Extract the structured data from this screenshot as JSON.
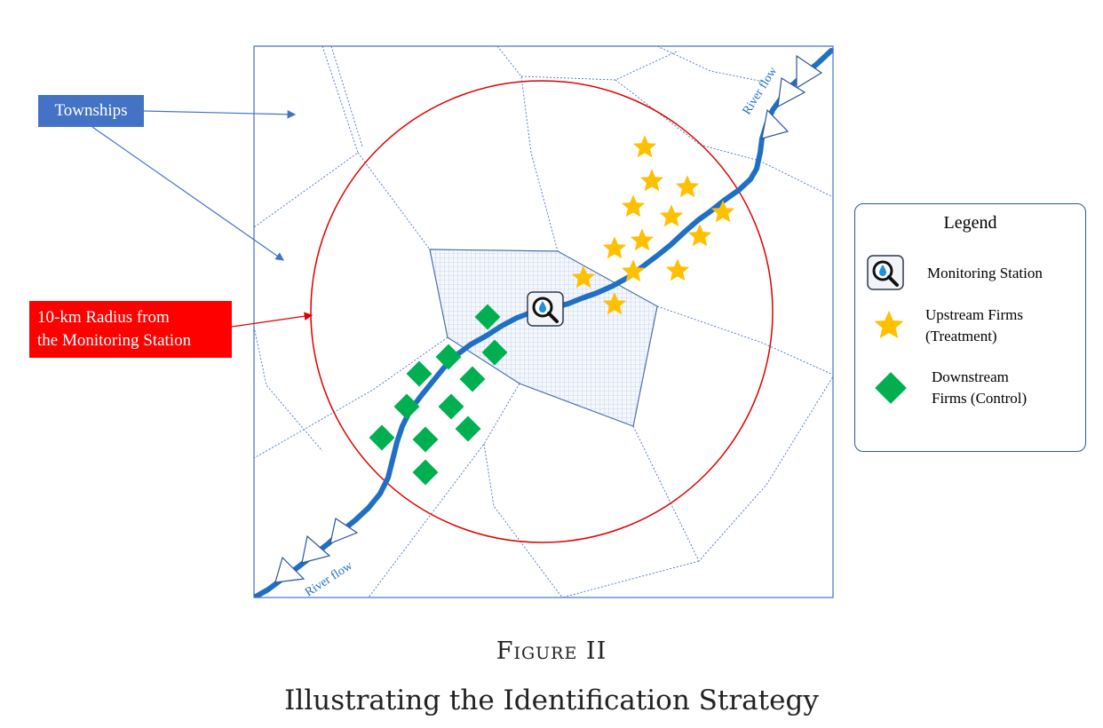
{
  "labels": {
    "townships": "Townships",
    "radius_line1": "10-km Radius from",
    "radius_line2": "the Monitoring Station",
    "river_flow_top": "River flow",
    "river_flow_bottom": "River flow"
  },
  "legend": {
    "title": "Legend",
    "monitoring_station": "Monitoring Station",
    "upstream_line1": "Upstream Firms",
    "upstream_line2": "(Treatment)",
    "downstream_line1": "Downstream",
    "downstream_line2": "Firms (Control)"
  },
  "caption": {
    "figure_label": "Figure II",
    "title": "Illustrating the Identification Strategy"
  },
  "icons": {
    "station": "magnifier-water-drop-icon",
    "upstream": "star-icon",
    "downstream": "diamond-icon",
    "flow": "triangle-arrow-icon"
  },
  "colors": {
    "river": "#1f6fc4",
    "circle": "#e00000",
    "boundary": "#4472c4",
    "star": "#ffc000",
    "diamond": "#00b050",
    "townships_box": "#4472c4",
    "radius_box": "#ff0000"
  }
}
